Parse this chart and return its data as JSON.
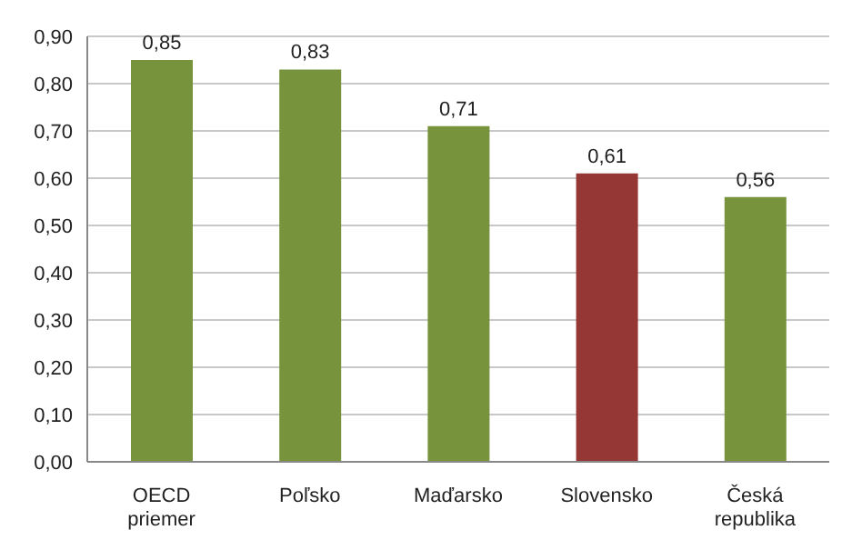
{
  "chart_data": {
    "type": "bar",
    "categories": [
      "OECD priemer",
      "Poľsko",
      "Maďarsko",
      "Slovensko",
      "Česká republika"
    ],
    "values": [
      0.85,
      0.83,
      0.71,
      0.61,
      0.56
    ],
    "colors": [
      "#77933c",
      "#77933c",
      "#77933c",
      "#953735",
      "#77933c"
    ],
    "value_labels": [
      "0,85",
      "0,83",
      "0,71",
      "0,61",
      "0,56"
    ],
    "ylim": [
      0,
      0.9
    ],
    "yticks": [
      {
        "value": 0,
        "label": "0,00"
      },
      {
        "value": 0.1,
        "label": "0,10"
      },
      {
        "value": 0.2,
        "label": "0,20"
      },
      {
        "value": 0.3,
        "label": "0,30"
      },
      {
        "value": 0.4,
        "label": "0,40"
      },
      {
        "value": 0.5,
        "label": "0,50"
      },
      {
        "value": 0.6,
        "label": "0,60"
      },
      {
        "value": 0.7,
        "label": "0,70"
      },
      {
        "value": 0.8,
        "label": "0,80"
      },
      {
        "value": 0.9,
        "label": "0,90"
      }
    ],
    "grid": "y",
    "legend": false
  }
}
